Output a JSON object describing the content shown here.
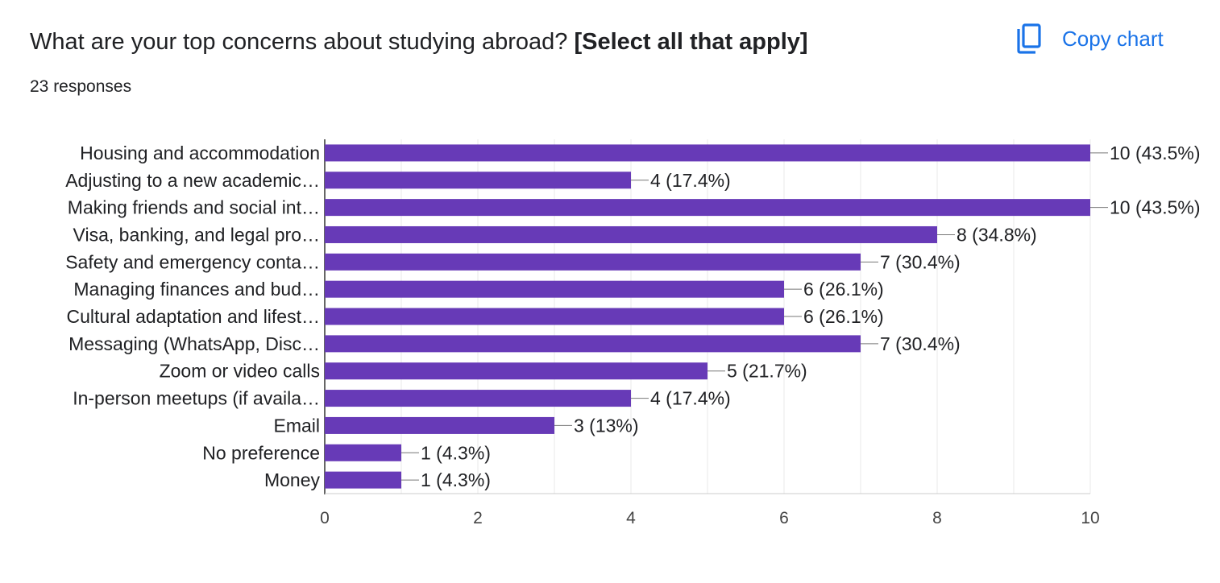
{
  "question": {
    "title_prefix": "What are your top concerns about studying abroad?",
    "title_emphasis": "[Select all that apply]",
    "responses": "23 responses"
  },
  "actions": {
    "copy_chart_label": "Copy chart",
    "copy_icon": "copy-icon"
  },
  "colors": {
    "bar": "#673ab7",
    "accent": "#1a73e8",
    "text": "#202124",
    "grid": "#e8e8e8",
    "axis": "#333333"
  },
  "chart_data": {
    "type": "bar",
    "orientation": "horizontal",
    "categories": [
      "Housing and accommodation",
      "Adjusting to a new academic…",
      "Making friends and social int…",
      "Visa, banking, and legal pro…",
      "Safety and emergency conta…",
      "Managing finances and bud…",
      "Cultural adaptation and lifest…",
      "Messaging (WhatsApp, Disc…",
      "Zoom or video calls",
      "In-person meetups (if availa…",
      "Email",
      "No preference",
      "Money"
    ],
    "values": [
      10,
      4,
      10,
      8,
      7,
      6,
      6,
      7,
      5,
      4,
      3,
      1,
      1
    ],
    "data_labels": [
      "10 (43.5%)",
      "4 (17.4%)",
      "10 (43.5%)",
      "8 (34.8%)",
      "7 (30.4%)",
      "6 (26.1%)",
      "6 (26.1%)",
      "7 (30.4%)",
      "5 (21.7%)",
      "4 (17.4%)",
      "3 (13%)",
      "1 (4.3%)",
      "1 (4.3%)"
    ],
    "xlim": [
      0,
      10
    ],
    "xticks": [
      0,
      2,
      4,
      6,
      8,
      10
    ],
    "grid": true,
    "title": "",
    "xlabel": "",
    "ylabel": ""
  }
}
